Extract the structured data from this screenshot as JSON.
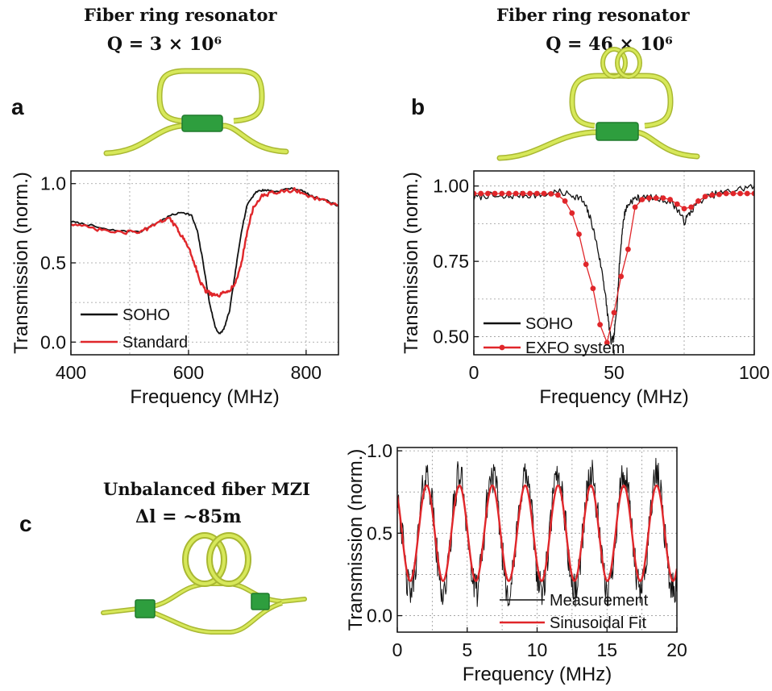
{
  "panels": {
    "a": {
      "letter": "a",
      "heading": "Fiber ring resonator",
      "formula": "Q = 3 × 10⁶"
    },
    "b": {
      "letter": "b",
      "heading": "Fiber ring resonator",
      "formula": "Q = 46 × 10⁶"
    },
    "c": {
      "letter": "c",
      "heading": "Unbalanced fiber MZI",
      "formula": "Δl = ~85m"
    }
  },
  "colors": {
    "fiber": "#d7e85a",
    "fiber_edge": "#a9b832",
    "coupler": "#2e9e3e",
    "black_series": "#111111",
    "red_series": "#e0262a"
  },
  "chart_data": [
    {
      "id": "a",
      "type": "line",
      "xlabel": "Frequency (MHz)",
      "ylabel": "Transmission (norm.)",
      "xlim": [
        400,
        855
      ],
      "ylim": [
        -0.08,
        1.08
      ],
      "xticks": [
        400,
        600,
        800
      ],
      "yticks": [
        0.0,
        0.5,
        1.0
      ],
      "ytick_labels": [
        "0.0",
        "0.5",
        "1.0"
      ],
      "grid": true,
      "legend": "bottom-left",
      "series": [
        {
          "name": "SOHO",
          "color": "#111111",
          "markers": false,
          "x": [
            400,
            430,
            460,
            490,
            520,
            550,
            570,
            590,
            605,
            615,
            625,
            635,
            645,
            652,
            660,
            670,
            680,
            690,
            700,
            715,
            730,
            750,
            770,
            790,
            810,
            830,
            855
          ],
          "y": [
            0.76,
            0.74,
            0.71,
            0.7,
            0.7,
            0.76,
            0.8,
            0.82,
            0.8,
            0.7,
            0.5,
            0.26,
            0.1,
            0.05,
            0.08,
            0.2,
            0.45,
            0.7,
            0.87,
            0.95,
            0.96,
            0.95,
            0.97,
            0.96,
            0.92,
            0.9,
            0.86
          ]
        },
        {
          "name": "Standard",
          "color": "#e0262a",
          "markers": false,
          "x": [
            400,
            430,
            460,
            490,
            520,
            545,
            565,
            580,
            590,
            600,
            610,
            620,
            630,
            640,
            650,
            660,
            670,
            680,
            690,
            700,
            710,
            725,
            740,
            760,
            780,
            800,
            830,
            855
          ],
          "y": [
            0.75,
            0.72,
            0.7,
            0.69,
            0.7,
            0.74,
            0.79,
            0.72,
            0.66,
            0.6,
            0.5,
            0.38,
            0.32,
            0.3,
            0.29,
            0.31,
            0.33,
            0.37,
            0.5,
            0.7,
            0.85,
            0.92,
            0.94,
            0.95,
            0.96,
            0.93,
            0.89,
            0.86
          ]
        }
      ]
    },
    {
      "id": "b",
      "type": "line",
      "xlabel": "Frequency (MHz)",
      "ylabel": "Transmission (norm.)",
      "xlim": [
        0,
        100
      ],
      "ylim": [
        0.44,
        1.05
      ],
      "xticks": [
        0,
        50,
        100
      ],
      "yticks": [
        0.5,
        0.75,
        1.0
      ],
      "ytick_labels": [
        "0.50",
        "0.75",
        "1.00"
      ],
      "grid": true,
      "legend": "bottom-left",
      "series": [
        {
          "name": "SOHO",
          "color": "#111111",
          "markers": false,
          "x": [
            0,
            5,
            10,
            15,
            20,
            25,
            30,
            35,
            38,
            40,
            42,
            44,
            46,
            47,
            48,
            49,
            50,
            51,
            52,
            53,
            54,
            56,
            58,
            60,
            65,
            70,
            73,
            75,
            77,
            80,
            85,
            90,
            95,
            100
          ],
          "y": [
            0.96,
            0.97,
            0.96,
            0.97,
            0.97,
            0.97,
            0.98,
            0.97,
            0.96,
            0.93,
            0.88,
            0.8,
            0.7,
            0.63,
            0.55,
            0.48,
            0.5,
            0.6,
            0.75,
            0.86,
            0.92,
            0.95,
            0.96,
            0.96,
            0.96,
            0.95,
            0.92,
            0.88,
            0.91,
            0.95,
            0.97,
            0.98,
            0.99,
            1.0
          ]
        },
        {
          "name": "EXFO system",
          "color": "#e0262a",
          "markers": true,
          "x": [
            0,
            2.5,
            5,
            7.5,
            10,
            12.5,
            15,
            17.5,
            20,
            22.5,
            25,
            27.5,
            30,
            32.5,
            35,
            37.5,
            40,
            42.5,
            45,
            47.5,
            50,
            52.5,
            55,
            57.5,
            60,
            62.5,
            65,
            67.5,
            70,
            72.5,
            75,
            77.5,
            80,
            82.5,
            85,
            87.5,
            90,
            92.5,
            95,
            97.5,
            100
          ],
          "y": [
            0.975,
            0.975,
            0.975,
            0.975,
            0.975,
            0.975,
            0.975,
            0.975,
            0.975,
            0.975,
            0.975,
            0.974,
            0.97,
            0.95,
            0.91,
            0.84,
            0.74,
            0.66,
            0.54,
            0.48,
            0.58,
            0.7,
            0.79,
            0.93,
            0.955,
            0.96,
            0.96,
            0.96,
            0.955,
            0.94,
            0.925,
            0.93,
            0.95,
            0.965,
            0.97,
            0.972,
            0.975,
            0.975,
            0.975,
            0.975,
            0.975
          ]
        }
      ]
    },
    {
      "id": "c",
      "type": "line",
      "xlabel": "Frequency (MHz)",
      "ylabel": "Transmission (norm.)",
      "xlim": [
        0,
        20
      ],
      "ylim": [
        -0.1,
        1.02
      ],
      "xticks": [
        0,
        5,
        10,
        15,
        20
      ],
      "yticks": [
        0.0,
        0.5,
        1.0
      ],
      "ytick_labels": [
        "0.0",
        "0.5",
        "1.0"
      ],
      "grid": true,
      "legend": "bottom-right",
      "period_MHz": 2.35,
      "series": [
        {
          "name": "Measurement",
          "color": "#111111",
          "markers": false,
          "noisy": true
        },
        {
          "name": "Sinusoidal Fit",
          "color": "#e0262a",
          "markers": false,
          "fit": {
            "offset": 0.5,
            "amplitude": 0.29,
            "period": 2.35,
            "phase_x_at_peak": 2.1
          }
        }
      ]
    }
  ]
}
